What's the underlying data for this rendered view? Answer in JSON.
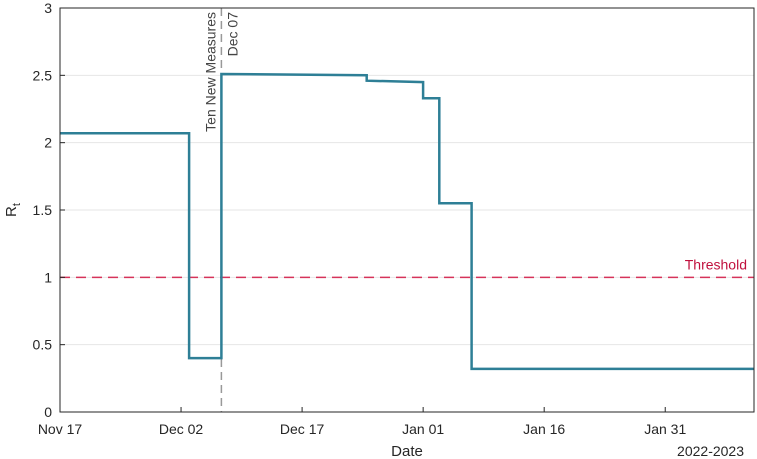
{
  "chart_data": {
    "type": "line",
    "xlabel": "Date",
    "ylabel": "R",
    "ylabel_subscript": "t",
    "x_secondary_label": "2022-2023",
    "xlim": [
      "2022-11-17",
      "2023-02-11"
    ],
    "ylim": [
      0,
      3
    ],
    "yticks": [
      0,
      0.5,
      1,
      1.5,
      2,
      2.5,
      3
    ],
    "ytick_labels": [
      "0",
      "0.5",
      "1",
      "1.5",
      "2",
      "2.5",
      "3"
    ],
    "xticks": [
      "2022-11-17",
      "2022-12-02",
      "2022-12-17",
      "2023-01-01",
      "2023-01-16",
      "2023-01-31"
    ],
    "xtick_labels": [
      "Nov 17",
      "Dec 02",
      "Dec 17",
      "Jan 01",
      "Jan 16",
      "Jan 31"
    ],
    "grid": "horizontal",
    "series": [
      {
        "color": "#2e7f96",
        "style": "step",
        "points": [
          {
            "x": "2022-11-17",
            "y": 2.07
          },
          {
            "x": "2022-12-03",
            "y": 2.07
          },
          {
            "x": "2022-12-03",
            "y": 0.4
          },
          {
            "x": "2022-12-07",
            "y": 0.4
          },
          {
            "x": "2022-12-07",
            "y": 2.51
          },
          {
            "x": "2022-12-25",
            "y": 2.5
          },
          {
            "x": "2022-12-25",
            "y": 2.46
          },
          {
            "x": "2023-01-01",
            "y": 2.45
          },
          {
            "x": "2023-01-01",
            "y": 2.33
          },
          {
            "x": "2023-01-03",
            "y": 2.33
          },
          {
            "x": "2023-01-03",
            "y": 1.55
          },
          {
            "x": "2023-01-07",
            "y": 1.55
          },
          {
            "x": "2023-01-07",
            "y": 0.32
          },
          {
            "x": "2023-02-11",
            "y": 0.32
          }
        ]
      }
    ],
    "annotations": {
      "vline": {
        "x": "2022-12-07",
        "color": "#999999",
        "style": "dashed",
        "label1": "Ten New Measures",
        "label2": "Dec 07"
      },
      "hline": {
        "y": 1,
        "color": "#d6335a",
        "style": "dashed",
        "label": "Threshold"
      }
    }
  }
}
